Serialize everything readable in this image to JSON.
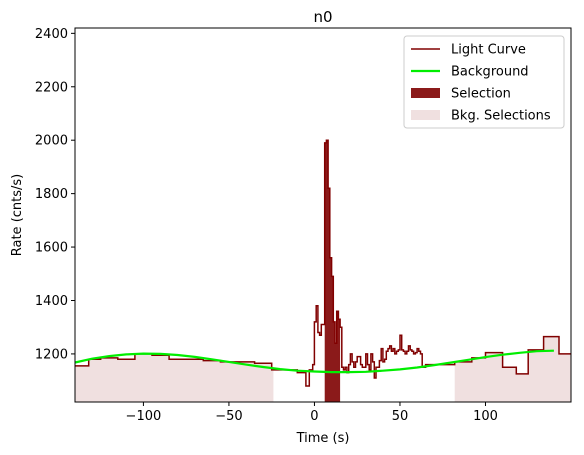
{
  "chart_data": {
    "type": "line",
    "title": "n0",
    "xlabel": "Time (s)",
    "ylabel": "Rate (cnts/s)",
    "xlim": [
      -140,
      150
    ],
    "ylim": [
      1020,
      2420
    ],
    "xticks": [
      -100,
      -50,
      0,
      50,
      100
    ],
    "yticks": [
      1200,
      1400,
      1600,
      1800,
      2000,
      2200,
      2400
    ],
    "legend_position": "top-right",
    "grid": false,
    "colors": {
      "light_curve": "#800000",
      "background": "#00ee00",
      "selection": "#8b1a1a",
      "bkg_selection": "#f0e0e0"
    },
    "legend": [
      {
        "label": "Light Curve",
        "kind": "line",
        "color": "#800000"
      },
      {
        "label": "Background",
        "kind": "line",
        "color": "#00ee00"
      },
      {
        "label": "Selection",
        "kind": "patch",
        "color": "#8b1a1a"
      },
      {
        "label": "Bkg. Selections",
        "kind": "patch",
        "color": "#f0e0e0"
      }
    ],
    "bkg_selections": [
      [
        -140,
        -24
      ],
      [
        82,
        150
      ]
    ],
    "selection": [
      6,
      15
    ],
    "light_curve": {
      "x": [
        -140,
        -132,
        -125,
        -115,
        -105,
        -95,
        -85,
        -75,
        -65,
        -55,
        -45,
        -35,
        -25,
        -15,
        -10,
        -5,
        -3,
        -1,
        0,
        1,
        2,
        3,
        4,
        5,
        6,
        7,
        8,
        9,
        10,
        11,
        12,
        13,
        14,
        15,
        16,
        17,
        18,
        19,
        20,
        21,
        22,
        23,
        24,
        25,
        26,
        27,
        28,
        29,
        30,
        31,
        32,
        33,
        34,
        35,
        36,
        37,
        38,
        39,
        40,
        41,
        42,
        43,
        44,
        45,
        46,
        47,
        48,
        49,
        50,
        51,
        52,
        53,
        54,
        55,
        56,
        57,
        58,
        59,
        60,
        61,
        62,
        63,
        65,
        72,
        82,
        92,
        100,
        110,
        118,
        125,
        134,
        143,
        150
      ],
      "y": [
        1155,
        1180,
        1185,
        1180,
        1200,
        1195,
        1180,
        1180,
        1175,
        1170,
        1170,
        1165,
        1140,
        1140,
        1130,
        1080,
        1140,
        1160,
        1320,
        1380,
        1280,
        1270,
        1310,
        1310,
        1990,
        2000,
        1820,
        1560,
        1490,
        1320,
        1240,
        1360,
        1330,
        1300,
        1150,
        1140,
        1150,
        1130,
        1160,
        1200,
        1170,
        1150,
        1170,
        1190,
        1190,
        1160,
        1150,
        1150,
        1200,
        1160,
        1140,
        1200,
        1170,
        1110,
        1150,
        1150,
        1175,
        1220,
        1170,
        1180,
        1210,
        1220,
        1230,
        1210,
        1220,
        1200,
        1210,
        1215,
        1270,
        1215,
        1210,
        1200,
        1210,
        1230,
        1215,
        1210,
        1200,
        1205,
        1220,
        1210,
        1200,
        1150,
        1160,
        1160,
        1170,
        1185,
        1205,
        1150,
        1125,
        1215,
        1265,
        1200,
        1200
      ]
    },
    "background": {
      "x": [
        -140,
        -130,
        -120,
        -110,
        -100,
        -90,
        -80,
        -70,
        -60,
        -50,
        -40,
        -30,
        -20,
        -10,
        0,
        10,
        20,
        30,
        40,
        50,
        60,
        70,
        80,
        90,
        100,
        110,
        120,
        130,
        140
      ],
      "y": [
        1168,
        1182,
        1192,
        1198,
        1201,
        1200,
        1196,
        1189,
        1180,
        1170,
        1160,
        1151,
        1143,
        1137,
        1134,
        1132,
        1132,
        1133,
        1137,
        1142,
        1149,
        1158,
        1168,
        1178,
        1188,
        1197,
        1204,
        1210,
        1212
      ]
    }
  }
}
